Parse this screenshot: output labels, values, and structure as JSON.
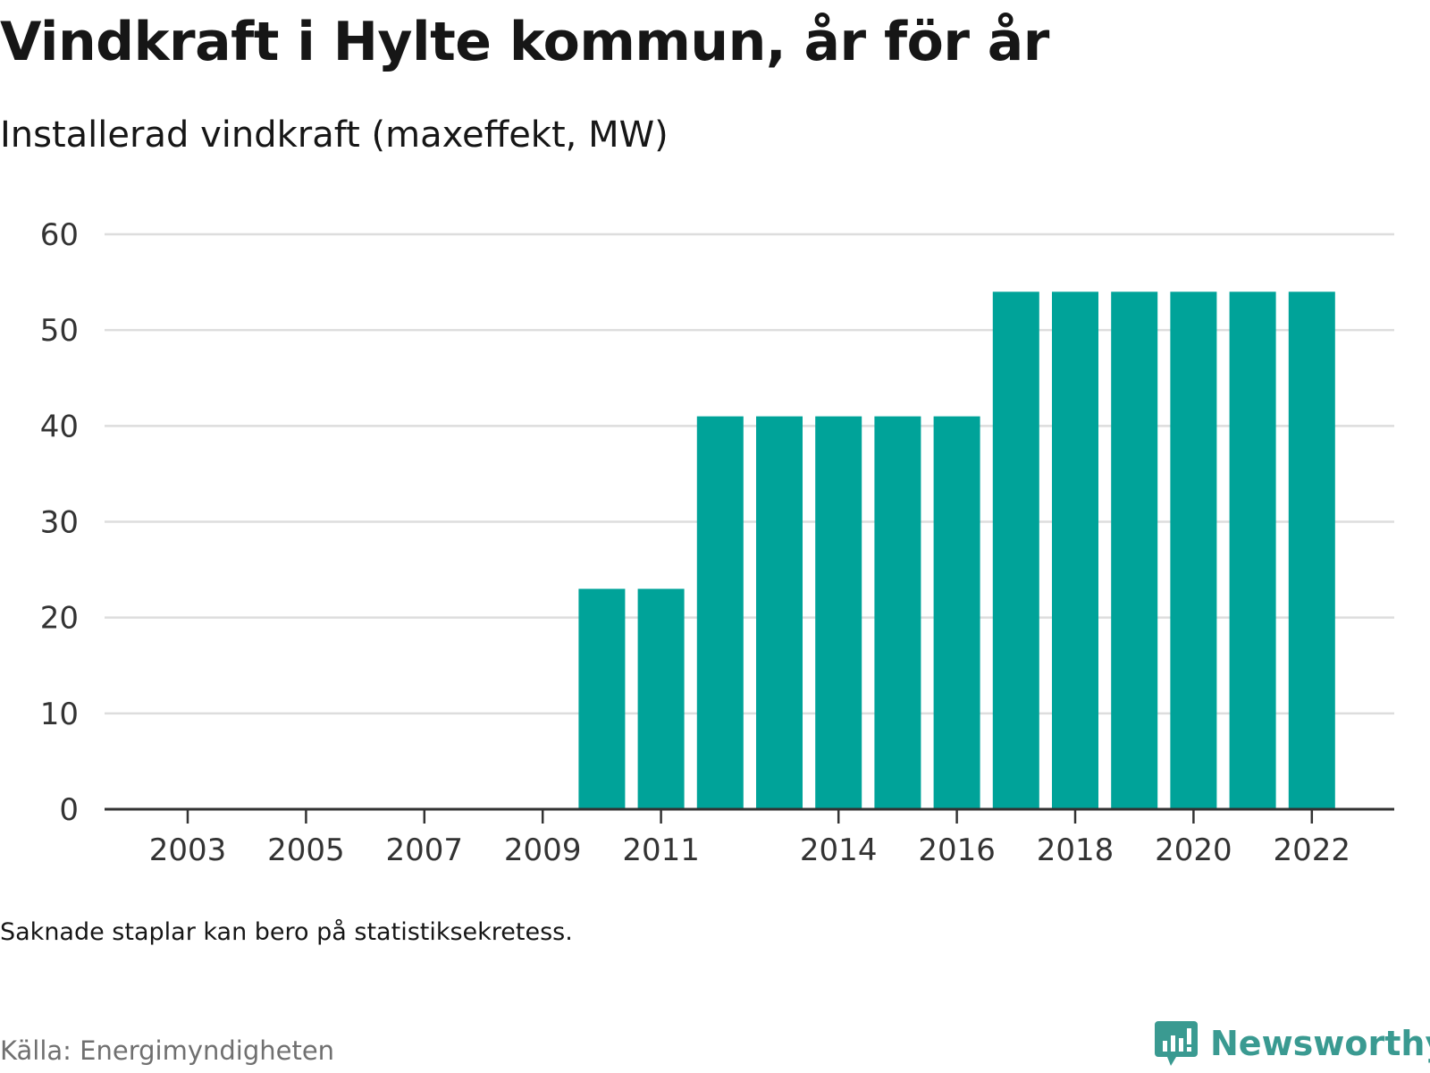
{
  "title": "Vindkraft i Hylte kommun, år för år",
  "subtitle": "Installerad vindkraft (maxeffekt, MW)",
  "note": "Saknade staplar kan bero på statistiksekretess.",
  "source": "Källa: Energimyndigheten",
  "brand": {
    "name": "Newsworthy",
    "icon": "newsworthy-logo-icon",
    "color": "#3a9a91"
  },
  "colors": {
    "bar": "#00a399",
    "grid": "#dddddd",
    "axis": "#333333",
    "tick_text": "#333333"
  },
  "chart_data": {
    "type": "bar",
    "title": "Vindkraft i Hylte kommun, år för år",
    "subtitle": "Installerad vindkraft (maxeffekt, MW)",
    "xlabel": "",
    "ylabel": "",
    "categories": [
      "2003",
      "2004",
      "2005",
      "2006",
      "2007",
      "2008",
      "2009",
      "2010",
      "2011",
      "2012",
      "2013",
      "2014",
      "2015",
      "2016",
      "2017",
      "2018",
      "2019",
      "2020",
      "2021",
      "2022"
    ],
    "values": [
      0,
      0,
      0,
      0,
      0,
      0,
      0,
      23,
      23,
      41,
      41,
      41,
      41,
      41,
      54,
      54,
      54,
      54,
      54,
      54
    ],
    "x_tick_labels": [
      "2003",
      "2005",
      "2007",
      "2009",
      "2011",
      "2014",
      "2016",
      "2018",
      "2020",
      "2022"
    ],
    "ylim": [
      0,
      60
    ],
    "y_ticks": [
      0,
      10,
      20,
      30,
      40,
      50,
      60
    ],
    "grid": true,
    "legend": false
  }
}
